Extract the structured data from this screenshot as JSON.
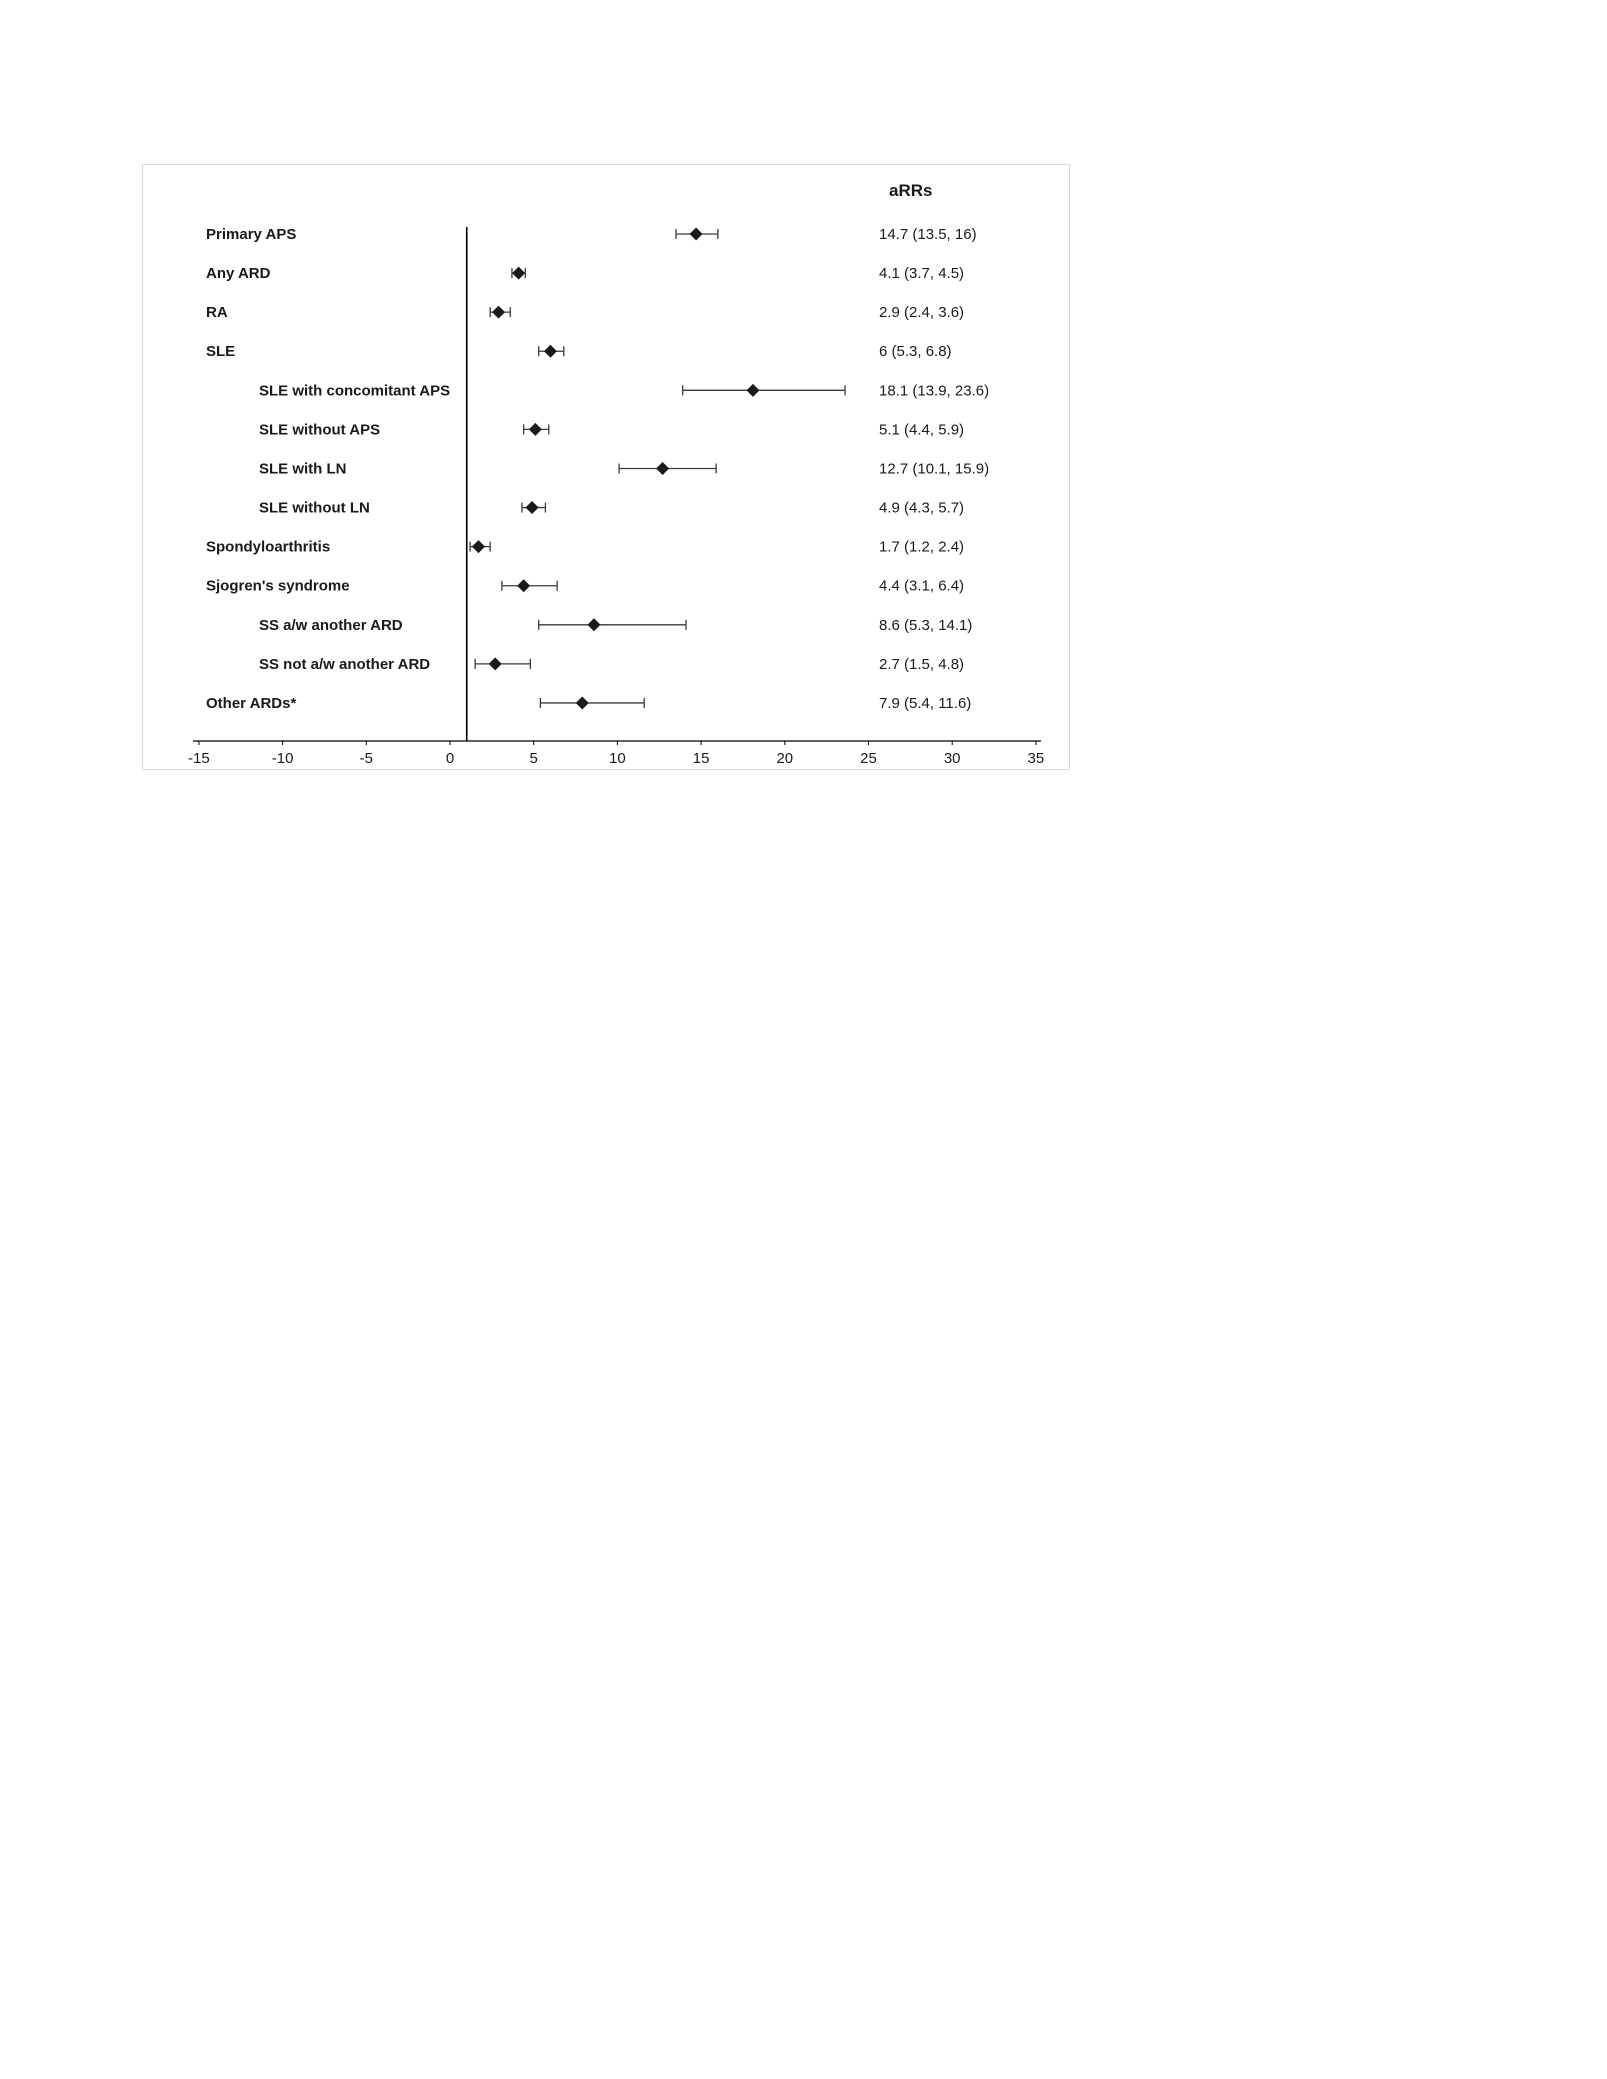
{
  "chart_data": {
    "type": "forest",
    "title": "aRRs",
    "reference_line_x": 1,
    "xlim": [
      -15,
      35
    ],
    "x_ticks": [
      -15,
      -10,
      -5,
      0,
      5,
      10,
      15,
      20,
      25,
      30,
      35
    ],
    "grid": false,
    "legend": "none",
    "rows": [
      {
        "label": "Primary APS",
        "indent": 0,
        "value": 14.7,
        "lo": 13.5,
        "hi": 16.0,
        "text": "14.7 (13.5, 16)"
      },
      {
        "label": "Any ARD",
        "indent": 0,
        "value": 4.1,
        "lo": 3.7,
        "hi": 4.5,
        "text": "4.1 (3.7, 4.5)"
      },
      {
        "label": "RA",
        "indent": 0,
        "value": 2.9,
        "lo": 2.4,
        "hi": 3.6,
        "text": "2.9 (2.4, 3.6)"
      },
      {
        "label": "SLE",
        "indent": 0,
        "value": 6.0,
        "lo": 5.3,
        "hi": 6.8,
        "text": "6 (5.3, 6.8)"
      },
      {
        "label": "SLE with concomitant APS",
        "indent": 1,
        "value": 18.1,
        "lo": 13.9,
        "hi": 23.6,
        "text": "18.1 (13.9, 23.6)"
      },
      {
        "label": "SLE without APS",
        "indent": 1,
        "value": 5.1,
        "lo": 4.4,
        "hi": 5.9,
        "text": "5.1 (4.4, 5.9)"
      },
      {
        "label": "SLE with LN",
        "indent": 1,
        "value": 12.7,
        "lo": 10.1,
        "hi": 15.9,
        "text": "12.7 (10.1, 15.9)"
      },
      {
        "label": "SLE without LN",
        "indent": 1,
        "value": 4.9,
        "lo": 4.3,
        "hi": 5.7,
        "text": "4.9 (4.3, 5.7)"
      },
      {
        "label": "Spondyloarthritis",
        "indent": 0,
        "value": 1.7,
        "lo": 1.2,
        "hi": 2.4,
        "text": "1.7 (1.2, 2.4)"
      },
      {
        "label": "Sjogren's syndrome",
        "indent": 0,
        "value": 4.4,
        "lo": 3.1,
        "hi": 6.4,
        "text": "4.4 (3.1, 6.4)"
      },
      {
        "label": "SS a/w another ARD",
        "indent": 1,
        "value": 8.6,
        "lo": 5.3,
        "hi": 14.1,
        "text": "8.6 (5.3, 14.1)"
      },
      {
        "label": "SS not a/w another ARD",
        "indent": 1,
        "value": 2.7,
        "lo": 1.5,
        "hi": 4.8,
        "text": "2.7 (1.5, 4.8)"
      },
      {
        "label": "Other ARDs*",
        "indent": 0,
        "value": 7.9,
        "lo": 5.4,
        "hi": 11.6,
        "text": "7.9 (5.4, 11.6)"
      }
    ]
  },
  "colors": {
    "marker": "#1a1a1a",
    "error_bar": "#3a3a3a",
    "axis": "#000000",
    "frame_border": "#d6d6d6",
    "text": "#1a1a1a"
  }
}
